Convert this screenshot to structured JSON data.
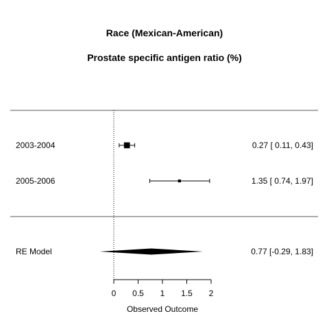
{
  "chart_data": {
    "type": "forest",
    "title": "Race (Mexican-American)",
    "subtitle": "Prostate specific antigen ratio (%)",
    "xlabel": "Observed Outcome",
    "xticks": [
      "0",
      "0.5",
      "1",
      "1.5",
      "2"
    ],
    "xtick_values": [
      0,
      0.5,
      1,
      1.5,
      2
    ],
    "reference_line": 0,
    "studies": [
      {
        "label": "2003-2004",
        "estimate": 0.27,
        "ci_low": 0.11,
        "ci_high": 0.43,
        "weight": 0.9,
        "text": "0.27 [ 0.11, 0.43]"
      },
      {
        "label": "2005-2006",
        "estimate": 1.35,
        "ci_low": 0.74,
        "ci_high": 1.97,
        "weight": 0.1,
        "text": "1.35 [ 0.74, 1.97]"
      }
    ],
    "summary": {
      "label": "RE Model",
      "estimate": 0.77,
      "ci_low": -0.29,
      "ci_high": 1.83,
      "text": "0.77 [-0.29, 1.83]"
    }
  }
}
